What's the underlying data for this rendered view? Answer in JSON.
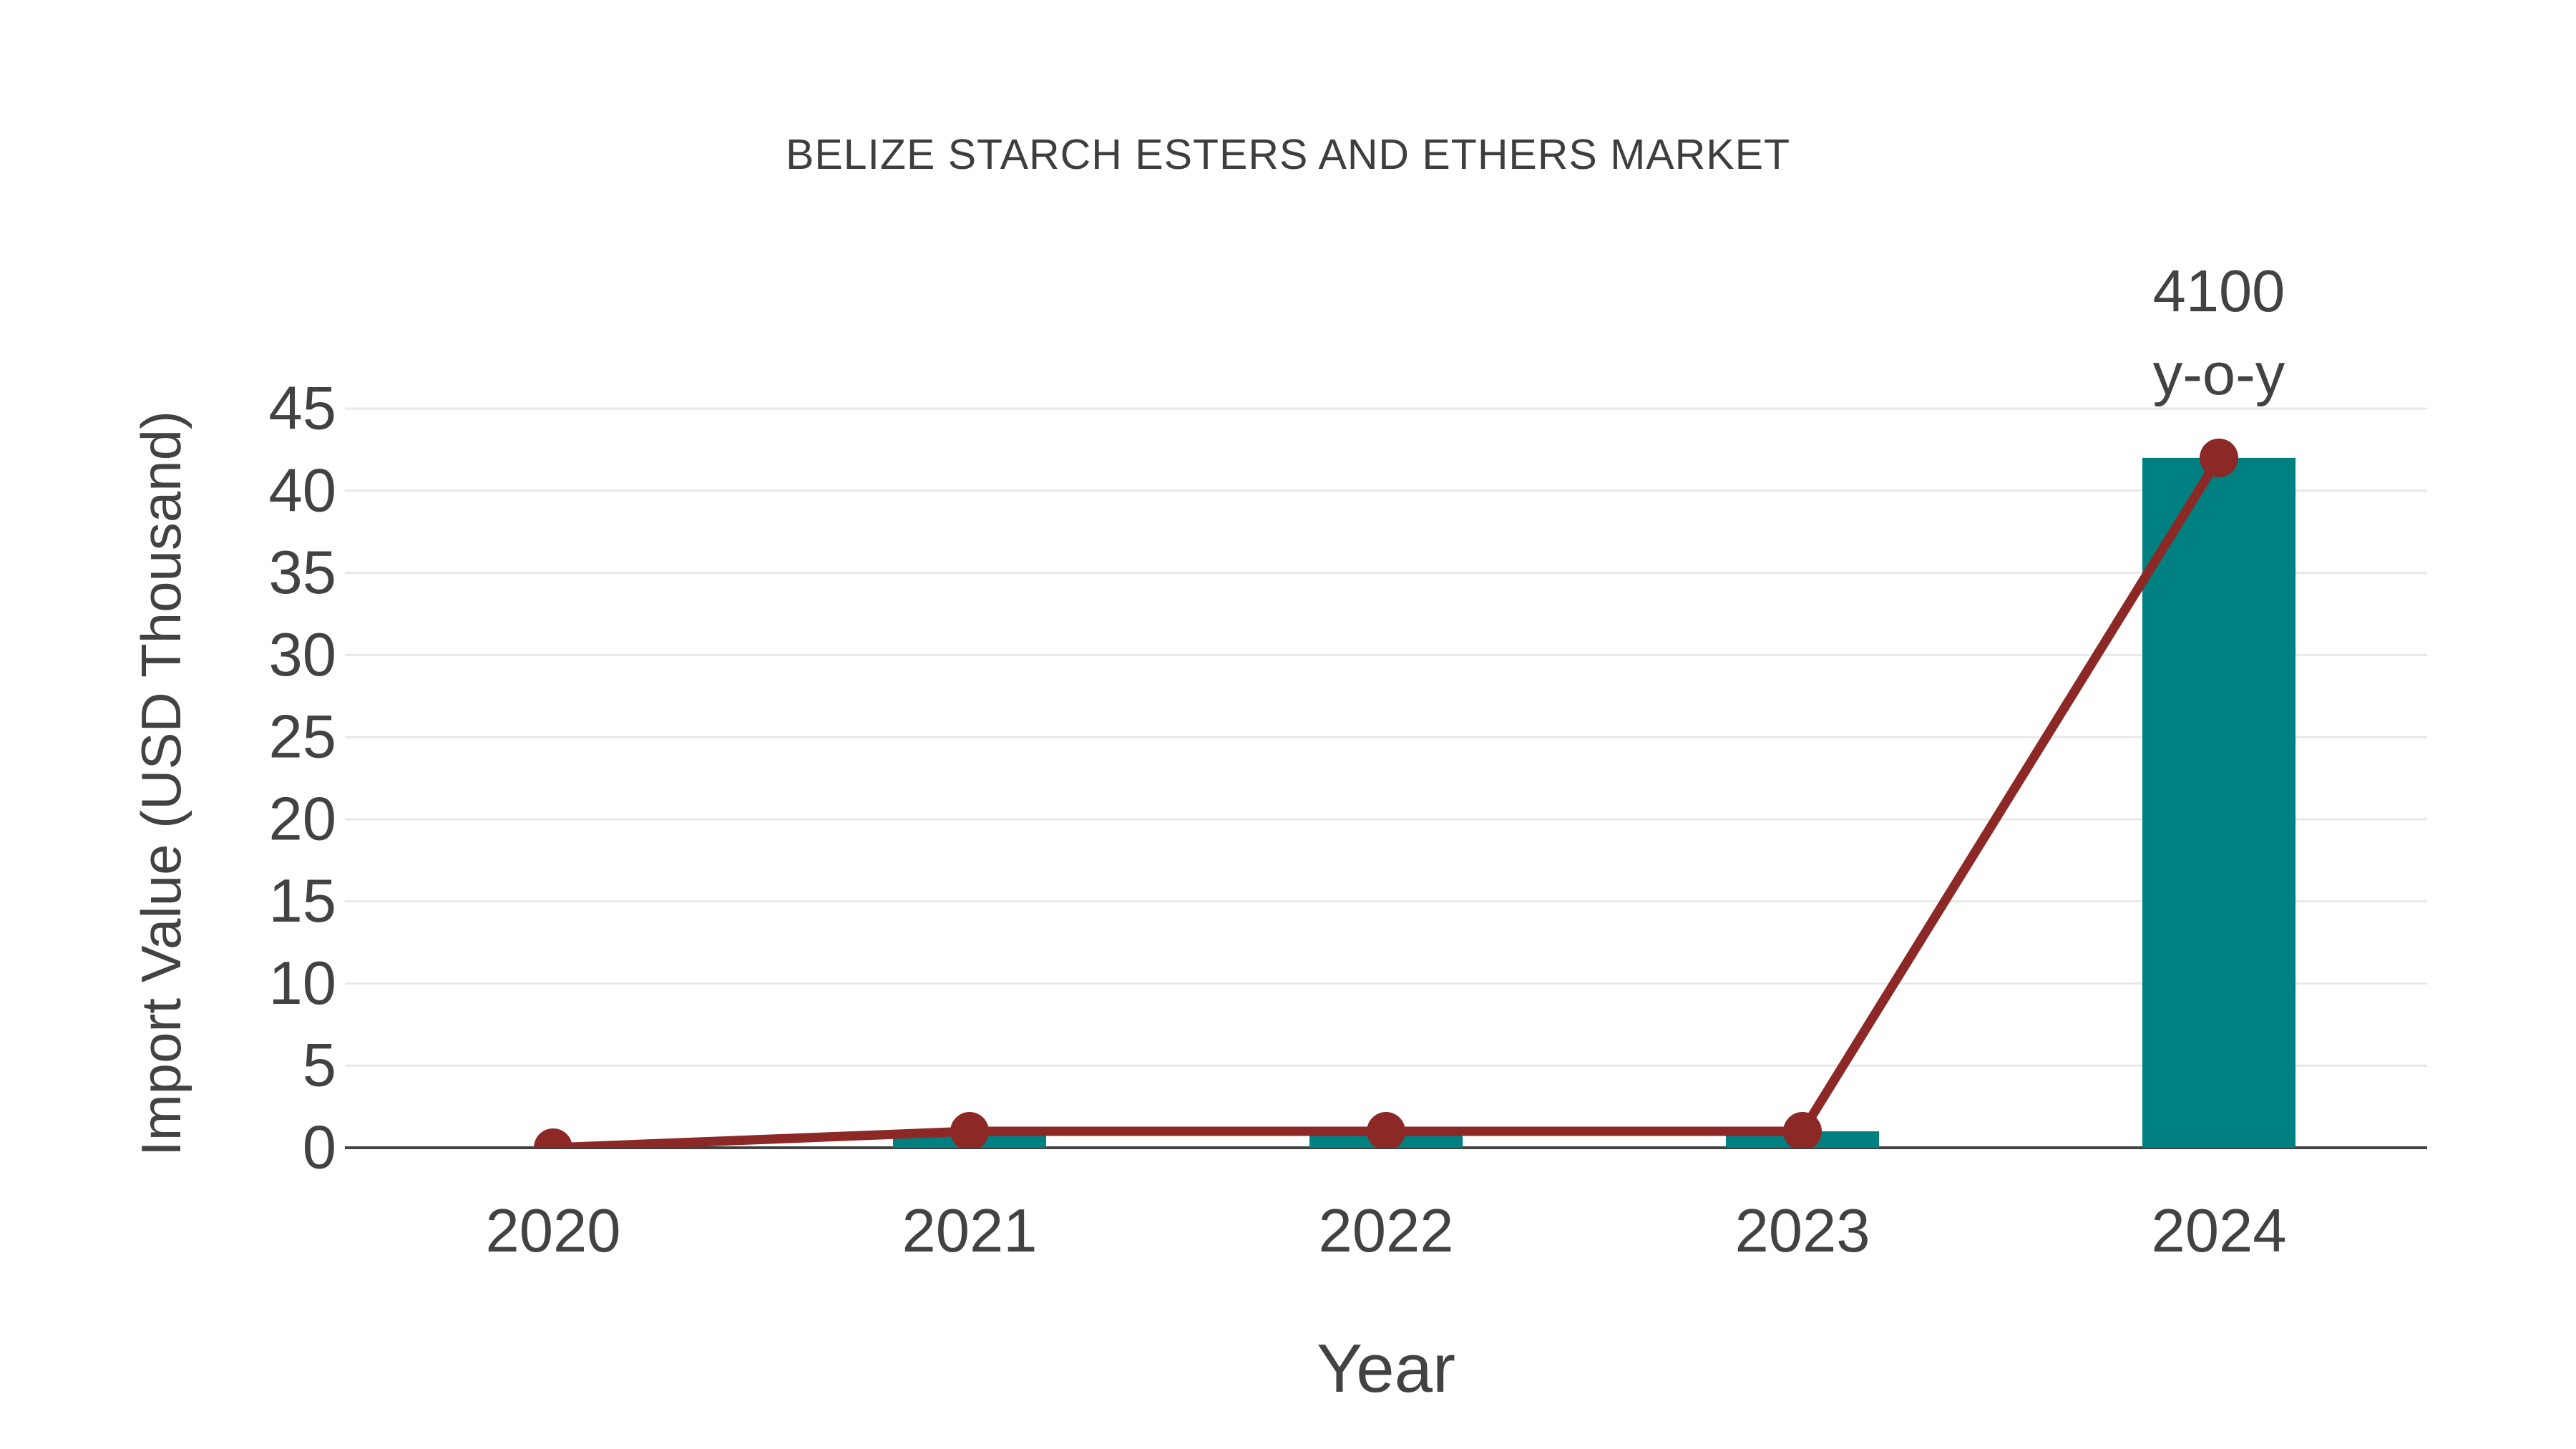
{
  "title": "BELIZE STARCH ESTERS AND ETHERS MARKET",
  "annotation": {
    "line1": "4100",
    "line2": "y-o-y",
    "anchor_category": "2024"
  },
  "colors": {
    "bar": "#008080",
    "line": "#8c2826",
    "marker": "#8c2826",
    "grid": "#e8e8e8",
    "axis_line": "#424242",
    "text": "#424242",
    "title_text": "#3e3e3e",
    "background": "#ffffff"
  },
  "chart_data": {
    "type": "bar",
    "title": "BELIZE STARCH ESTERS AND ETHERS MARKET",
    "xlabel": "Year",
    "ylabel": "Import Value (USD Thousand)",
    "categories": [
      "2020",
      "2021",
      "2022",
      "2023",
      "2024"
    ],
    "series": [
      {
        "name": "Import Value bars",
        "type": "bar",
        "values": [
          0,
          1,
          1,
          1,
          42
        ]
      },
      {
        "name": "Import Value trend line",
        "type": "line",
        "values": [
          0,
          1,
          1,
          1,
          42
        ]
      }
    ],
    "ylim": [
      0,
      45
    ],
    "ytick_step": 5,
    "yticks": [
      0,
      5,
      10,
      15,
      20,
      25,
      30,
      35,
      40,
      45
    ],
    "grid": true,
    "legend": "none",
    "annotations": [
      {
        "text": "4100 y-o-y",
        "x": "2024",
        "y": 42,
        "position": "above marker"
      }
    ]
  }
}
